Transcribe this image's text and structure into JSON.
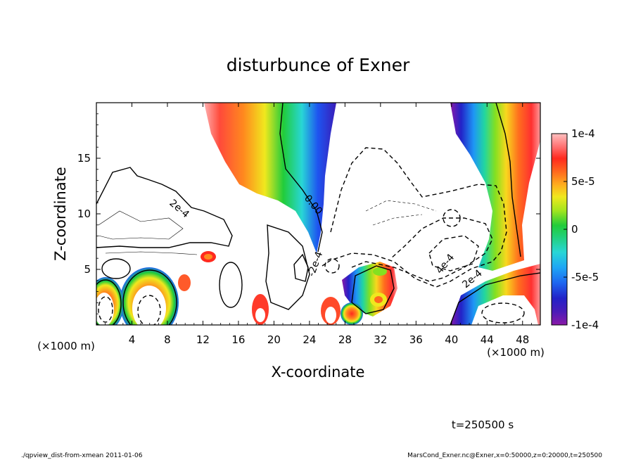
{
  "chart_data": {
    "type": "heatmap",
    "title": "disturbunce of Exner",
    "xlabel": "X-coordinate",
    "ylabel": "Z-coordinate",
    "x_unit": "(×1000 m)",
    "x_unit_right": "(×1000 m)",
    "y_unit": "(×1000 m)",
    "xlim": [
      0,
      50
    ],
    "ylim": [
      0,
      20
    ],
    "x_ticks": [
      "4",
      "8",
      "12",
      "16",
      "20",
      "24",
      "28",
      "32",
      "36",
      "40",
      "44",
      "48"
    ],
    "x_tick_values": [
      4,
      8,
      12,
      16,
      20,
      24,
      28,
      32,
      36,
      40,
      44,
      48
    ],
    "y_ticks": [
      "5",
      "10",
      "15"
    ],
    "y_tick_values": [
      5,
      10,
      15
    ],
    "colorbar": {
      "min": -0.0001,
      "max": 0.0001,
      "tick_labels": [
        "1e-4",
        "5e-5",
        "0",
        "-5e-5",
        "-1e-4"
      ],
      "tick_values": [
        0.0001,
        5e-05,
        0,
        -5e-05,
        -0.0001
      ],
      "colors": [
        "#8b1aa8",
        "#5a1cb5",
        "#2222c8",
        "#1e55f0",
        "#1e96f5",
        "#2ad2e6",
        "#22d6a0",
        "#21cc3a",
        "#84e020",
        "#dcf01e",
        "#f8d81e",
        "#ffa41e",
        "#ff6e1e",
        "#ff2a1e",
        "#ff5c5c",
        "#ff9a9a",
        "#ffc8c8"
      ]
    },
    "contour_labels": [
      "2e-4",
      "0.00",
      "-2e-4",
      "4e-4",
      "2e-4"
    ],
    "annotation": "t=250500 s"
  },
  "footer": {
    "left": "./qpview_dist-from-xmean  2011-01-06",
    "right": "MarsCond_Exner.nc@Exner,x=0:50000,z=0:20000,t=250500"
  }
}
